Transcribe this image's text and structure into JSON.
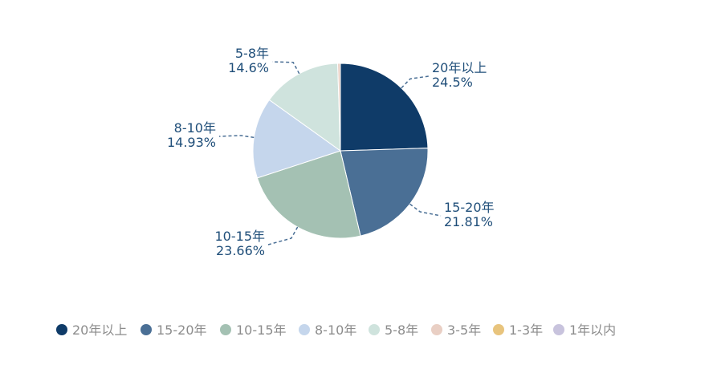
{
  "chart_data": {
    "type": "pie",
    "title": "",
    "legend_placement": "bottom-left",
    "slices": [
      {
        "name": "20年以上",
        "value": 24.5,
        "label": "24.5%",
        "color": "#0f3b68"
      },
      {
        "name": "15-20年",
        "value": 21.81,
        "label": "21.81%",
        "color": "#4a6f95"
      },
      {
        "name": "10-15年",
        "value": 23.66,
        "label": "23.66%",
        "color": "#a4c1b3"
      },
      {
        "name": "8-10年",
        "value": 14.93,
        "label": "14.93%",
        "color": "#c5d6ec"
      },
      {
        "name": "5-8年",
        "value": 14.6,
        "label": "14.6%",
        "color": "#cfe3dd"
      },
      {
        "name": "3-5年",
        "value": 0.5,
        "label": "",
        "color": "#e9cfc4"
      },
      {
        "name": "1-3年",
        "value": 0,
        "label": "",
        "color": "#e8c47d"
      },
      {
        "name": "1年以内",
        "value": 0,
        "label": "",
        "color": "#c8c3dd"
      }
    ],
    "legend": [
      "20年以上",
      "15-20年",
      "10-15年",
      "8-10年",
      "5-8年",
      "3-5年",
      "1-3年",
      "1年以内"
    ]
  },
  "colors": {
    "label_text": "#1f4e79",
    "leader_line": "#4a6f95",
    "legend_text": "#8c8c8c"
  }
}
